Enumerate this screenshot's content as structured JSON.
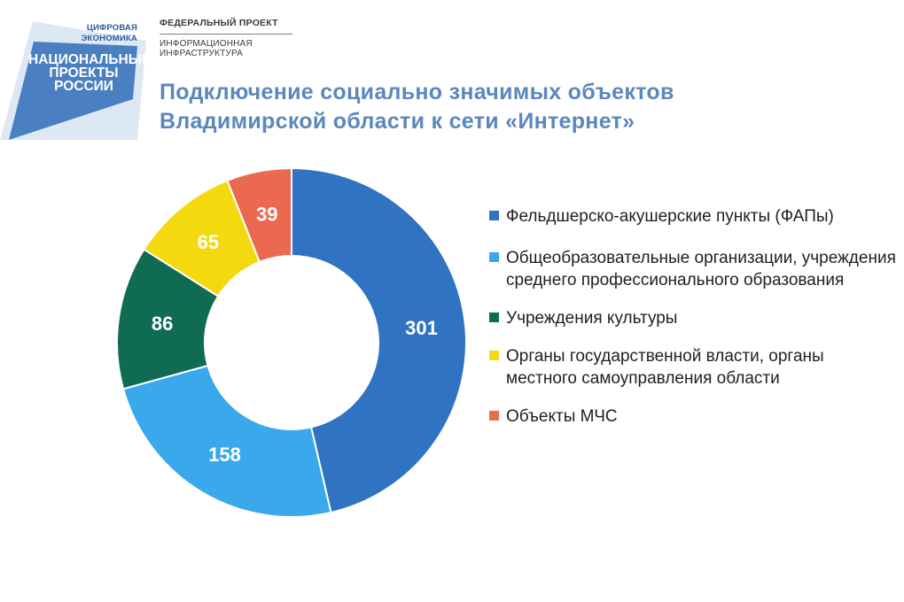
{
  "logo": {
    "line1": "ЦИФРОВАЯ",
    "line2": "ЭКОНОМИКА",
    "big1": "НАЦИОНАЛЬНЫЕ",
    "big2": "ПРОЕКТЫ",
    "big3": "РОССИИ",
    "color": "#4a7fc1"
  },
  "header": {
    "federal_title": "ФЕДЕРАЛЬНЫЙ ПРОЕКТ",
    "federal_sub1": "ИНФОРМАЦИОННАЯ",
    "federal_sub2": "ИНФРАСТРУКТУРА"
  },
  "chart_data": {
    "type": "pie",
    "donut": true,
    "title_lines": [
      "Подключение социально значимых объектов",
      "Владимирской области к сети «Интернет»"
    ],
    "legend_position": "right",
    "series": [
      {
        "name": "Фельдшерско-акушерские пункты (ФАПы)",
        "value": 301,
        "label": "301",
        "color": "#2f73c2"
      },
      {
        "name": "Общеобразовательные организации, учреждения среднего профессионального образования",
        "value": 158,
        "label": "158",
        "color": "#39a9eb"
      },
      {
        "name": "Учреждения культуры",
        "value": 86,
        "label": "86",
        "color": "#0f6b52"
      },
      {
        "name": "Органы государственной власти, органы местного самоуправления области",
        "value": 65,
        "label": "65",
        "color": "#f5d90f"
      },
      {
        "name": "Объекты МЧС",
        "value": 39,
        "label": "39",
        "color": "#eb6a4f"
      }
    ]
  }
}
